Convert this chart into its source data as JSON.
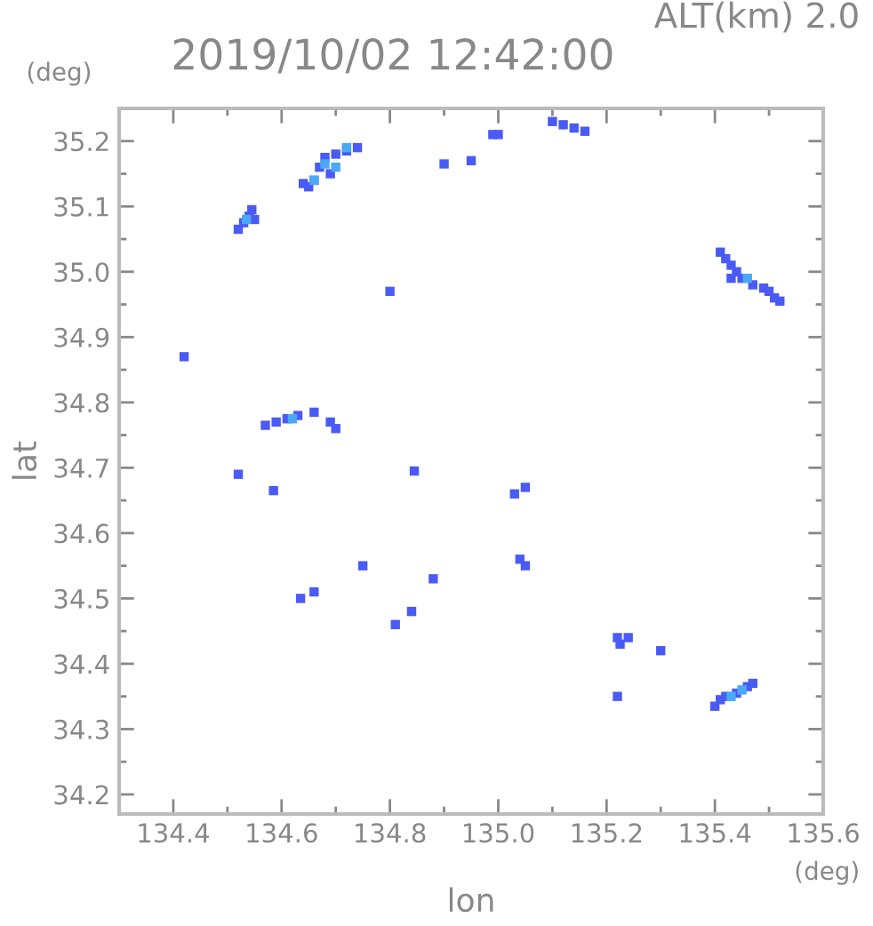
{
  "chart_data": {
    "type": "scatter",
    "title": "2019/10/02 12:42:00",
    "xlabel": "lon",
    "ylabel": "lat",
    "annotations": [
      "ALT(km) 2.0",
      "(deg)",
      "(deg)"
    ],
    "xlim": [
      134.3,
      135.6
    ],
    "ylim": [
      34.17,
      35.25
    ],
    "xticks": [
      134.4,
      {
        "value": 134.5,
        "label": null
      },
      134.6,
      {
        "value": 134.7,
        "label": null
      },
      134.8,
      {
        "value": 134.9,
        "label": null
      },
      "135.0",
      {
        "value": 135.1,
        "label": null
      },
      135.2,
      {
        "value": 135.3,
        "label": null
      },
      135.4,
      {
        "value": 135.5,
        "label": null
      },
      135.6
    ],
    "yticks": [
      34.2,
      {
        "value": 34.25,
        "label": null
      },
      34.3,
      {
        "value": 34.35,
        "label": null
      },
      34.4,
      {
        "value": 34.45,
        "label": null
      },
      34.5,
      {
        "value": 34.55,
        "label": null
      },
      34.6,
      {
        "value": 34.65,
        "label": null
      },
      34.7,
      {
        "value": 34.75,
        "label": null
      },
      34.8,
      {
        "value": 34.85,
        "label": null
      },
      34.9,
      {
        "value": 34.95,
        "label": null
      },
      {
        "value": 35.0,
        "label": "35.0"
      },
      {
        "value": 35.05,
        "label": null
      },
      35.1,
      {
        "value": 35.15,
        "label": null
      },
      35.2
    ],
    "grid": false,
    "legend": false,
    "marker": "square",
    "series": [
      {
        "color": "#4a5af5",
        "x": [
          134.52,
          134.53,
          134.54,
          134.545,
          134.55,
          134.64,
          134.65,
          134.66,
          134.67,
          134.68,
          134.7,
          134.72,
          134.74,
          134.69,
          134.8,
          134.9,
          134.95,
          134.99,
          135.0,
          135.1,
          135.12,
          135.14,
          135.16,
          135.41,
          135.42,
          135.43,
          135.44,
          135.45,
          135.47,
          135.49,
          135.5,
          135.51,
          135.52,
          135.43,
          134.42,
          134.57,
          134.59,
          134.61,
          134.63,
          134.66,
          134.69,
          134.7,
          134.52,
          134.585,
          134.845,
          135.03,
          135.05,
          134.635,
          134.66,
          134.75,
          134.88,
          134.81,
          134.84,
          135.04,
          135.05,
          135.22,
          135.24,
          135.225,
          135.3,
          135.22,
          135.4,
          135.41,
          135.42,
          135.44,
          135.46,
          135.47
        ],
        "values": [
          35.065,
          35.075,
          35.085,
          35.095,
          35.08,
          35.135,
          35.13,
          35.14,
          35.16,
          35.175,
          35.18,
          35.185,
          35.19,
          35.15,
          34.97,
          35.165,
          35.17,
          35.21,
          35.21,
          35.23,
          35.225,
          35.22,
          35.215,
          35.03,
          35.02,
          35.01,
          35.0,
          34.99,
          34.98,
          34.975,
          34.97,
          34.96,
          34.955,
          34.99,
          34.87,
          34.765,
          34.77,
          34.775,
          34.78,
          34.785,
          34.77,
          34.76,
          34.69,
          34.665,
          34.695,
          34.66,
          34.67,
          34.5,
          34.51,
          34.55,
          34.53,
          34.46,
          34.48,
          34.56,
          34.55,
          34.44,
          34.44,
          34.43,
          34.42,
          34.35,
          34.335,
          34.345,
          34.35,
          34.355,
          34.365,
          34.37
        ]
      },
      {
        "color": "#4aa8f5",
        "x": [
          134.535,
          134.66,
          134.68,
          134.72,
          134.7,
          135.46,
          134.62,
          135.43,
          135.45
        ],
        "values": [
          35.08,
          35.14,
          35.165,
          35.19,
          35.16,
          34.99,
          34.775,
          34.35,
          34.36
        ]
      }
    ]
  }
}
